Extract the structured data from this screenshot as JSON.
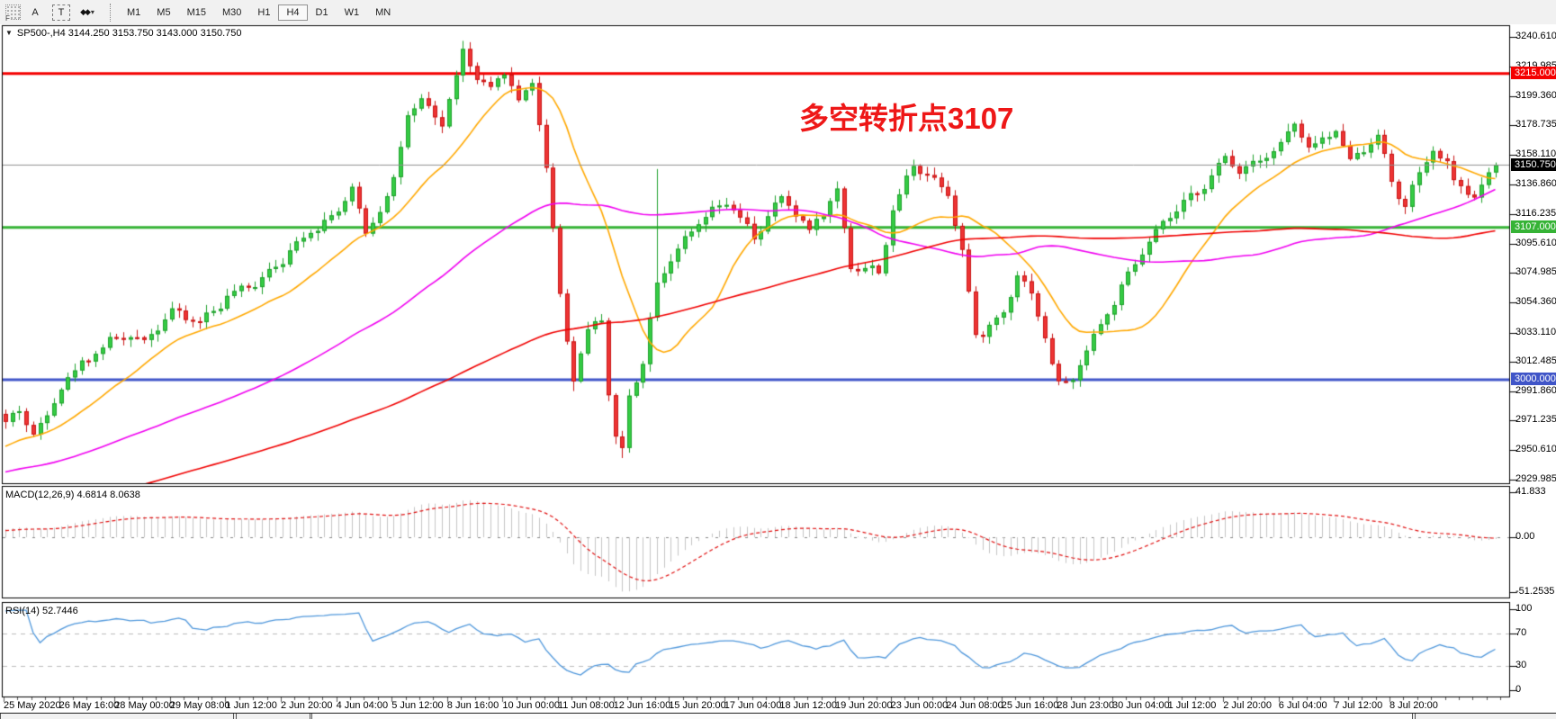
{
  "window": {
    "bg_color": "#f0f0f0"
  },
  "toolbar": {
    "gripper_label": "F",
    "dropdown_caret": "▾",
    "buttons": [
      {
        "name": "font-tool",
        "label": "A"
      },
      {
        "name": "text-label-tool",
        "label": "T"
      },
      {
        "name": "arrows-tool",
        "label": "◆◆"
      }
    ],
    "timeframes": [
      {
        "label": "M1",
        "active": false
      },
      {
        "label": "M5",
        "active": false
      },
      {
        "label": "M15",
        "active": false
      },
      {
        "label": "M30",
        "active": false
      },
      {
        "label": "H1",
        "active": false
      },
      {
        "label": "H4",
        "active": true
      },
      {
        "label": "D1",
        "active": false
      },
      {
        "label": "W1",
        "active": false
      },
      {
        "label": "MN",
        "active": false
      }
    ]
  },
  "chart": {
    "collapse_icon": "▼",
    "title": "SP500-,H4 3144.250 3153.750 3143.000 3150.750",
    "annotation": {
      "text": "多空转折点3107",
      "color": "#ee1717"
    },
    "price_axis_ticks": [
      "3240.610",
      "3219.985",
      "3199.360",
      "3178.735",
      "3158.110",
      "3136.860",
      "3116.235",
      "3095.610",
      "3074.985",
      "3054.360",
      "3033.110",
      "3012.485",
      "2991.860",
      "2971.235",
      "2950.610",
      "2929.985"
    ],
    "badges": [
      {
        "text": "3215.000",
        "price": 3215.0,
        "bg": "#f40000"
      },
      {
        "text": "3150.750",
        "price": 3150.75,
        "bg": "#000000"
      },
      {
        "text": "3107.000",
        "price": 3107.0,
        "bg": "#36b336"
      },
      {
        "text": "3000.000",
        "price": 3000.0,
        "bg": "#4055c8"
      }
    ],
    "hlines": [
      {
        "price": 3215.0,
        "color": "#f40000",
        "width": 3
      },
      {
        "price": 3107.0,
        "color": "#36b336",
        "width": 3
      },
      {
        "price": 3000.0,
        "color": "#4055c8",
        "width": 3
      }
    ],
    "current_price_line": {
      "price": 3150.75,
      "color": "#909090",
      "width": 1
    },
    "time_axis_labels": [
      "25 May 2020",
      "26 May 16:00",
      "28 May 00:00",
      "29 May 08:00",
      "1 Jun 12:00",
      "2 Jun 20:00",
      "4 Jun 04:00",
      "5 Jun 12:00",
      "8 Jun 16:00",
      "10 Jun 00:00",
      "11 Jun 08:00",
      "12 Jun 16:00",
      "15 Jun 20:00",
      "17 Jun 04:00",
      "18 Jun 12:00",
      "19 Jun 20:00",
      "23 Jun 00:00",
      "24 Jun 08:00",
      "25 Jun 16:00",
      "28 Jun 23:00",
      "30 Jun 04:00",
      "1 Jul 12:00",
      "2 Jul 20:00",
      "6 Jul 04:00",
      "7 Jul 12:00",
      "8 Jul 20:00"
    ],
    "colors": {
      "up_fill": "#35cc44",
      "up_edge": "#1fa02c",
      "down_fill": "#ee3434",
      "down_edge": "#c81414",
      "ma_fast": "#ffa800",
      "ma_mid": "#f000f0",
      "ma_slow": "#f00000"
    }
  },
  "macd": {
    "label": "MACD(12,26,9) 4.6814 8.0638",
    "values": [
      4.6814,
      8.0638
    ],
    "axis_ticks": [
      {
        "label": "41.833",
        "value": 41.833
      },
      {
        "label": "0.00",
        "value": 0
      },
      {
        "label": "-51.2535",
        "value": -51.2535
      }
    ],
    "hist_color": "#c4c4c4",
    "signal_color": "#e01010"
  },
  "rsi": {
    "label": "RSI(14) 52.7446",
    "value": 52.7446,
    "axis_ticks": [
      {
        "label": "100",
        "value": 100
      },
      {
        "label": "70",
        "value": 70
      },
      {
        "label": "30",
        "value": 30
      },
      {
        "label": "0",
        "value": 0
      }
    ],
    "levels": [
      70,
      30
    ],
    "line_color": "#4f97db",
    "level_color": "#bbbbbb"
  },
  "chart_data": {
    "type": "candlestick",
    "symbol": "SP500-",
    "timeframe": "H4",
    "ohlc_current": {
      "open": 3144.25,
      "high": 3153.75,
      "low": 3143.0,
      "close": 3150.75
    },
    "y_range": [
      2929.985,
      3240.61
    ],
    "x_range": [
      "25 May 2020",
      "8 Jul 20:00"
    ],
    "key_levels": [
      3215.0,
      3150.75,
      3107.0,
      3000.0
    ],
    "bars": 216,
    "bars_per_time_tick": 8,
    "close_anchors": [
      [
        0,
        2970
      ],
      [
        2,
        2978
      ],
      [
        4,
        2962
      ],
      [
        6,
        2975
      ],
      [
        8,
        2996
      ],
      [
        12,
        3016
      ],
      [
        16,
        3030
      ],
      [
        20,
        3028
      ],
      [
        24,
        3048
      ],
      [
        28,
        3040
      ],
      [
        32,
        3058
      ],
      [
        36,
        3068
      ],
      [
        40,
        3085
      ],
      [
        44,
        3105
      ],
      [
        48,
        3118
      ],
      [
        50,
        3135
      ],
      [
        52,
        3102
      ],
      [
        56,
        3140
      ],
      [
        58,
        3186
      ],
      [
        60,
        3195
      ],
      [
        63,
        3180
      ],
      [
        66,
        3230
      ],
      [
        68,
        3212
      ],
      [
        70,
        3202
      ],
      [
        72,
        3218
      ],
      [
        74,
        3195
      ],
      [
        76,
        3210
      ],
      [
        78,
        3150
      ],
      [
        80,
        3060
      ],
      [
        82,
        3000
      ],
      [
        84,
        3035
      ],
      [
        86,
        3045
      ],
      [
        87,
        2990
      ],
      [
        88,
        2958
      ],
      [
        89,
        2950
      ],
      [
        90,
        2990
      ],
      [
        92,
        3012
      ],
      [
        94,
        3070
      ],
      [
        96,
        3085
      ],
      [
        100,
        3110
      ],
      [
        104,
        3125
      ],
      [
        108,
        3100
      ],
      [
        112,
        3128
      ],
      [
        116,
        3105
      ],
      [
        120,
        3132
      ],
      [
        122,
        3080
      ],
      [
        126,
        3076
      ],
      [
        128,
        3118
      ],
      [
        131,
        3152
      ],
      [
        134,
        3140
      ],
      [
        136,
        3132
      ],
      [
        138,
        3090
      ],
      [
        140,
        3030
      ],
      [
        144,
        3046
      ],
      [
        146,
        3076
      ],
      [
        148,
        3060
      ],
      [
        150,
        3030
      ],
      [
        152,
        2996
      ],
      [
        154,
        3000
      ],
      [
        156,
        3022
      ],
      [
        160,
        3055
      ],
      [
        164,
        3090
      ],
      [
        168,
        3115
      ],
      [
        172,
        3132
      ],
      [
        176,
        3155
      ],
      [
        178,
        3148
      ],
      [
        180,
        3152
      ],
      [
        184,
        3165
      ],
      [
        186,
        3180
      ],
      [
        188,
        3162
      ],
      [
        192,
        3175
      ],
      [
        194,
        3155
      ],
      [
        196,
        3162
      ],
      [
        198,
        3172
      ],
      [
        200,
        3140
      ],
      [
        202,
        3120
      ],
      [
        204,
        3146
      ],
      [
        206,
        3160
      ],
      [
        208,
        3150
      ],
      [
        210,
        3136
      ],
      [
        212,
        3126
      ],
      [
        214,
        3148
      ],
      [
        215,
        3150.75
      ]
    ],
    "wick_spikes": [
      [
        66,
        3238
      ],
      [
        89,
        2945
      ],
      [
        94,
        3148
      ],
      [
        82,
        2992
      ]
    ],
    "ma_periods": {
      "fast": 16,
      "mid": 60,
      "slow": 130
    },
    "indicators": {
      "macd": {
        "fast": 12,
        "slow": 26,
        "signal": 9,
        "last_values": [
          4.6814,
          8.0638
        ],
        "axis_range": [
          -51.2535,
          41.833
        ]
      },
      "rsi": {
        "period": 14,
        "last_value": 52.7446,
        "levels": [
          30,
          70
        ],
        "axis_range": [
          0,
          100
        ]
      }
    }
  },
  "tabs_strip": {
    "segments": [
      [
        0,
        258
      ],
      [
        262,
        343
      ],
      [
        346,
        1568
      ],
      [
        1572,
        1729
      ]
    ]
  }
}
